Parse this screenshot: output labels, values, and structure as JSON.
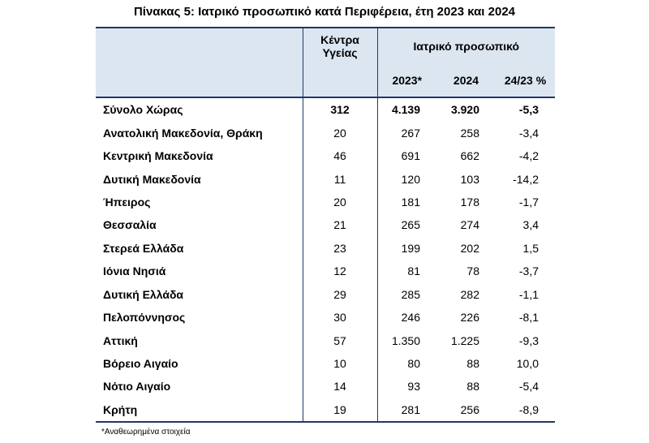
{
  "title": "Πίνακας 5: Ιατρικό προσωπικό κατά Περιφέρεια, έτη 2023 και 2024",
  "header": {
    "kentra_ygeias": "Κέντρα Υγείας",
    "iatriko_prosopiko": "Ιατρικό προσωπικό",
    "col_2023": "2023*",
    "col_2024": "2024",
    "col_pct": "24/23 %"
  },
  "rows": [
    {
      "name": "Σύνολο Χώρας",
      "kyg": "312",
      "y2023": "4.139",
      "y2024": "3.920",
      "pct": "-5,3"
    },
    {
      "name": "Ανατολική Μακεδονία, Θράκη",
      "kyg": "20",
      "y2023": "267",
      "y2024": "258",
      "pct": "-3,4"
    },
    {
      "name": "Κεντρική Μακεδονία",
      "kyg": "46",
      "y2023": "691",
      "y2024": "662",
      "pct": "-4,2"
    },
    {
      "name": "Δυτική Μακεδονία",
      "kyg": "11",
      "y2023": "120",
      "y2024": "103",
      "pct": "-14,2"
    },
    {
      "name": "Ήπειρος",
      "kyg": "20",
      "y2023": "181",
      "y2024": "178",
      "pct": "-1,7"
    },
    {
      "name": "Θεσσαλία",
      "kyg": "21",
      "y2023": "265",
      "y2024": "274",
      "pct": "3,4"
    },
    {
      "name": "Στερεά Ελλάδα",
      "kyg": "23",
      "y2023": "199",
      "y2024": "202",
      "pct": "1,5"
    },
    {
      "name": "Ιόνια Νησιά",
      "kyg": "12",
      "y2023": "81",
      "y2024": "78",
      "pct": "-3,7"
    },
    {
      "name": "Δυτική Ελλάδα",
      "kyg": "29",
      "y2023": "285",
      "y2024": "282",
      "pct": "-1,1"
    },
    {
      "name": "Πελοπόννησος",
      "kyg": "30",
      "y2023": "246",
      "y2024": "226",
      "pct": "-8,1"
    },
    {
      "name": "Αττική",
      "kyg": "57",
      "y2023": "1.350",
      "y2024": "1.225",
      "pct": "-9,3"
    },
    {
      "name": "Βόρειο Αιγαίο",
      "kyg": "10",
      "y2023": "80",
      "y2024": "88",
      "pct": "10,0"
    },
    {
      "name": "Νότιο Αιγαίο",
      "kyg": "14",
      "y2023": "93",
      "y2024": "88",
      "pct": "-5,4"
    },
    {
      "name": "Κρήτη",
      "kyg": "19",
      "y2023": "281",
      "y2024": "256",
      "pct": "-8,9"
    }
  ],
  "footnote": "*Αναθεωρημένα στοιχεία"
}
